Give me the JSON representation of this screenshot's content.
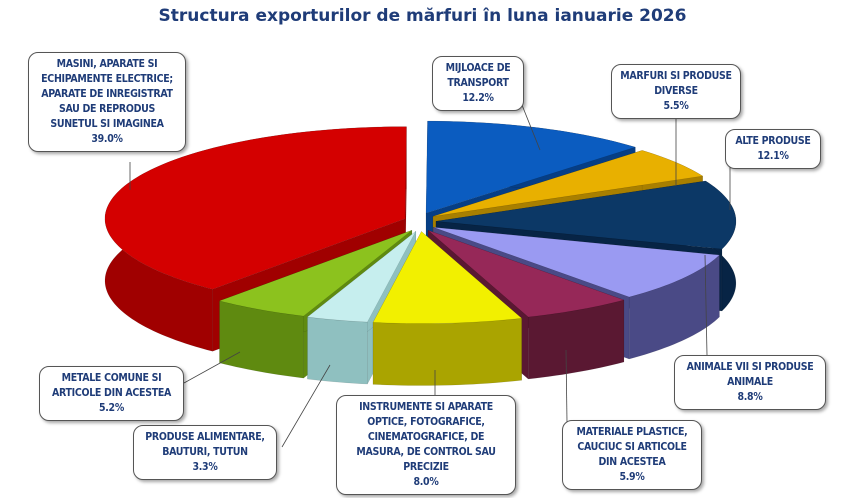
{
  "chart_data": {
    "type": "pie",
    "title": "Structura exporturilor de mărfuri în luna ianuarie 2026",
    "slices": [
      {
        "label": "MIJLOACE DE TRANSPORT",
        "value": 12.2,
        "value_label": "12.2%",
        "color": "#0b5cc0",
        "side": "#063e85"
      },
      {
        "label": "MARFURI SI PRODUSE DIVERSE",
        "value": 5.5,
        "value_label": "5.5%",
        "color": "#e8b000",
        "side": "#a87f00"
      },
      {
        "label": "ALTE PRODUSE",
        "value": 12.1,
        "value_label": "12.1%",
        "color": "#0c3866",
        "side": "#072445"
      },
      {
        "label": "ANIMALE VII SI PRODUSE ANIMALE",
        "value": 8.8,
        "value_label": "8.8%",
        "color": "#9a9af2",
        "side": "#4a4a86"
      },
      {
        "label": "MATERIALE PLASTICE, CAUCIUC SI ARTICOLE DIN ACESTEA",
        "value": 5.9,
        "value_label": "5.9%",
        "color": "#962858",
        "side": "#5a1832"
      },
      {
        "label": "INSTRUMENTE SI APARATE OPTICE, FOTOGRAFICE, CINEMATOGRAFICE, DE MASURA, DE CONTROL SAU PRECIZIE",
        "value": 8.0,
        "value_label": "8.0%",
        "color": "#f2f000",
        "side": "#aaa400"
      },
      {
        "label": "PRODUSE ALIMENTARE, BAUTURI, TUTUN",
        "value": 3.3,
        "value_label": "3.3%",
        "color": "#c6eeee",
        "side": "#8fc0c0"
      },
      {
        "label": "METALE COMUNE SI ARTICOLE DIN ACESTEA",
        "value": 5.2,
        "value_label": "5.2%",
        "color": "#8cc21e",
        "side": "#5f8a10"
      },
      {
        "label": "MASINI, APARATE SI ECHIPAMENTE ELECTRICE; APARATE DE INREGISTRAT SAU DE REPRODUS SUNETUL SI IMAGINEA",
        "value": 39.0,
        "value_label": "39.0%",
        "color": "#d40000",
        "side": "#a00000"
      }
    ]
  }
}
